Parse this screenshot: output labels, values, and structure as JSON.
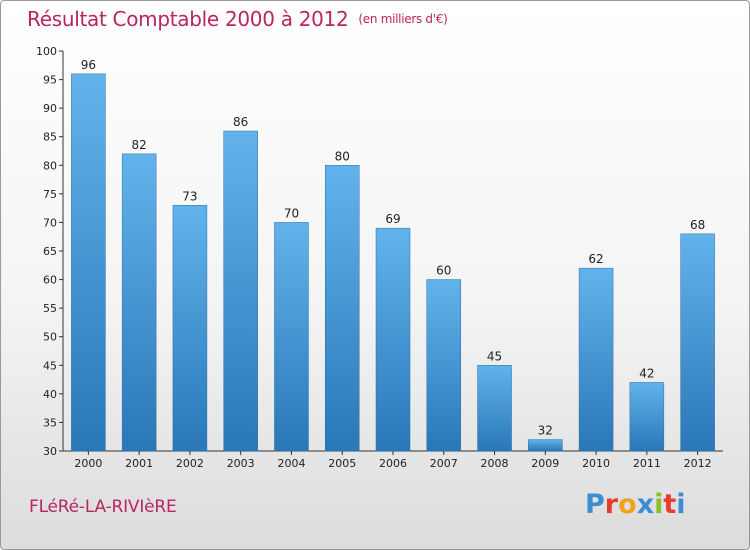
{
  "title": "Résultat Comptable 2000 à 2012",
  "subtitle": "(en milliers d'€)",
  "place": "FLéRé-LA-RIVIèRE",
  "logo": {
    "letters": [
      "P",
      "r",
      "o",
      "x",
      "i",
      "t",
      "i"
    ],
    "colors": [
      "#3a8fd4",
      "#e63b2e",
      "#f5a21c",
      "#3a8fd4",
      "#8dbf2a",
      "#e63b2e",
      "#3a8fd4"
    ]
  },
  "colors": {
    "bar_top": "#62b3eb",
    "bar_bottom": "#2a77b8",
    "title": "#b8255f"
  },
  "chart_data": {
    "type": "bar",
    "title": "Résultat Comptable 2000 à 2012",
    "subtitle": "(en milliers d'€)",
    "xlabel": "",
    "ylabel": "",
    "categories": [
      "2000",
      "2001",
      "2002",
      "2003",
      "2004",
      "2005",
      "2006",
      "2007",
      "2008",
      "2009",
      "2010",
      "2011",
      "2012"
    ],
    "values": [
      96,
      82,
      73,
      86,
      70,
      80,
      69,
      60,
      45,
      32,
      62,
      42,
      68
    ],
    "ylim": [
      30,
      100
    ],
    "yticks": [
      30,
      35,
      40,
      45,
      50,
      55,
      60,
      65,
      70,
      75,
      80,
      85,
      90,
      95,
      100
    ],
    "grid": false,
    "legend": "none",
    "data_labels": true
  }
}
